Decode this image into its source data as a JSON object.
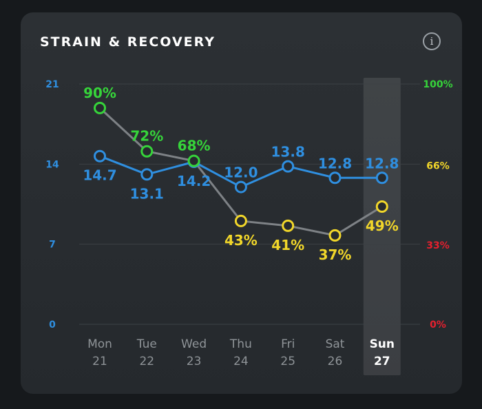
{
  "header": {
    "title": "STRAIN & RECOVERY",
    "info_glyph": "i"
  },
  "colors": {
    "strain": "#2f8fe0",
    "recovery_green": "#36d43a",
    "recovery_yellow": "#f2d72a",
    "recovery_red": "#e5202e",
    "recovery_line": "#7e8286",
    "grid": "#3c4145"
  },
  "chart_data": {
    "type": "line",
    "title": "STRAIN & RECOVERY",
    "categories": [
      {
        "day": "Mon",
        "date": "21"
      },
      {
        "day": "Tue",
        "date": "22"
      },
      {
        "day": "Wed",
        "date": "23"
      },
      {
        "day": "Thu",
        "date": "24"
      },
      {
        "day": "Fri",
        "date": "25"
      },
      {
        "day": "Sat",
        "date": "26"
      },
      {
        "day": "Sun",
        "date": "27"
      }
    ],
    "highlighted_index": 6,
    "left_axis": {
      "ticks": [
        "0",
        "7",
        "14",
        "21"
      ],
      "ylim": [
        0,
        21
      ]
    },
    "right_axis": {
      "ticks": [
        {
          "label": "0%",
          "value": 0,
          "color": "#e5202e"
        },
        {
          "label": "33%",
          "value": 33,
          "color": "#e5202e"
        },
        {
          "label": "66%",
          "value": 66,
          "color": "#f2d72a"
        },
        {
          "label": "100%",
          "value": 100,
          "color": "#36d43a"
        }
      ],
      "ylim": [
        0,
        100
      ]
    },
    "series": [
      {
        "key": "strain",
        "axis": "left",
        "values": [
          14.7,
          13.1,
          14.2,
          12.0,
          13.8,
          12.8,
          12.8
        ],
        "labels": [
          "14.7",
          "13.1",
          "14.2",
          "12.0",
          "13.8",
          "12.8",
          "12.8"
        ],
        "label_pos": [
          "below",
          "below",
          "below",
          "above",
          "above",
          "above",
          "above"
        ]
      },
      {
        "key": "recovery",
        "axis": "right",
        "values": [
          90,
          72,
          68,
          43,
          41,
          37,
          49
        ],
        "labels": [
          "90%",
          "72%",
          "68%",
          "43%",
          "41%",
          "37%",
          "49%"
        ],
        "label_pos": [
          "above",
          "above",
          "above",
          "below",
          "below",
          "below",
          "below"
        ],
        "point_colors": [
          "#36d43a",
          "#36d43a",
          "#36d43a",
          "#f2d72a",
          "#f2d72a",
          "#f2d72a",
          "#f2d72a"
        ]
      }
    ],
    "grid": true
  }
}
